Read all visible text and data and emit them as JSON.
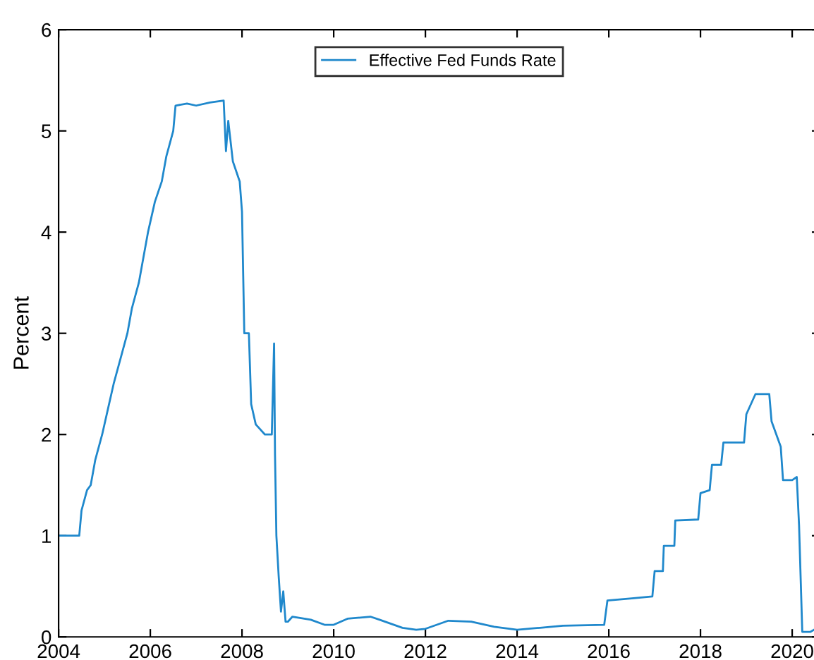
{
  "chart_data": {
    "type": "line",
    "ylabel": "Percent",
    "xlim": [
      2004,
      2020.6
    ],
    "xticks": [
      2004,
      2006,
      2008,
      2010,
      2012,
      2014,
      2016,
      2018,
      2020
    ],
    "ylim": [
      0,
      6
    ],
    "yticks": [
      0,
      1,
      2,
      3,
      4,
      5,
      6
    ],
    "grid": false,
    "legend": "top",
    "marker": "none",
    "line_style": "solid",
    "series": [
      {
        "name": "Effective Fed Funds Rate",
        "color": "#1f88cc",
        "x": [
          2004.0,
          2004.45,
          2004.5,
          2004.62,
          2004.7,
          2004.8,
          2004.95,
          2005.1,
          2005.2,
          2005.35,
          2005.5,
          2005.6,
          2005.75,
          2005.85,
          2005.95,
          2006.1,
          2006.25,
          2006.35,
          2006.5,
          2006.55,
          2006.8,
          2007.0,
          2007.3,
          2007.6,
          2007.65,
          2007.7,
          2007.8,
          2007.95,
          2008.0,
          2008.05,
          2008.15,
          2008.2,
          2008.3,
          2008.5,
          2008.65,
          2008.7,
          2008.72,
          2008.75,
          2008.8,
          2008.85,
          2008.9,
          2008.95,
          2009.0,
          2009.1,
          2009.5,
          2009.8,
          2010.0,
          2010.3,
          2010.8,
          2011.0,
          2011.5,
          2011.8,
          2012.0,
          2012.5,
          2013.0,
          2013.5,
          2014.0,
          2014.5,
          2015.0,
          2015.9,
          2015.97,
          2016.5,
          2016.95,
          2017.0,
          2017.18,
          2017.2,
          2017.43,
          2017.45,
          2017.95,
          2018.0,
          2018.2,
          2018.25,
          2018.45,
          2018.5,
          2018.95,
          2019.0,
          2019.2,
          2019.5,
          2019.55,
          2019.75,
          2019.8,
          2020.0,
          2020.1,
          2020.15,
          2020.22,
          2020.4,
          2020.55
        ],
        "values": [
          1.0,
          1.0,
          1.25,
          1.45,
          1.5,
          1.75,
          2.0,
          2.3,
          2.5,
          2.75,
          3.0,
          3.25,
          3.5,
          3.75,
          4.0,
          4.3,
          4.5,
          4.75,
          5.0,
          5.25,
          5.27,
          5.25,
          5.28,
          5.3,
          4.8,
          5.1,
          4.7,
          4.5,
          4.2,
          3.0,
          3.0,
          2.3,
          2.1,
          2.0,
          2.0,
          2.9,
          1.8,
          1.0,
          0.6,
          0.25,
          0.45,
          0.15,
          0.15,
          0.2,
          0.17,
          0.12,
          0.12,
          0.18,
          0.2,
          0.17,
          0.09,
          0.07,
          0.08,
          0.16,
          0.15,
          0.1,
          0.07,
          0.09,
          0.11,
          0.12,
          0.36,
          0.38,
          0.4,
          0.65,
          0.65,
          0.9,
          0.9,
          1.15,
          1.16,
          1.42,
          1.45,
          1.7,
          1.7,
          1.92,
          1.92,
          2.2,
          2.4,
          2.4,
          2.13,
          1.88,
          1.55,
          1.55,
          1.58,
          1.1,
          0.05,
          0.05,
          0.09
        ]
      }
    ]
  }
}
